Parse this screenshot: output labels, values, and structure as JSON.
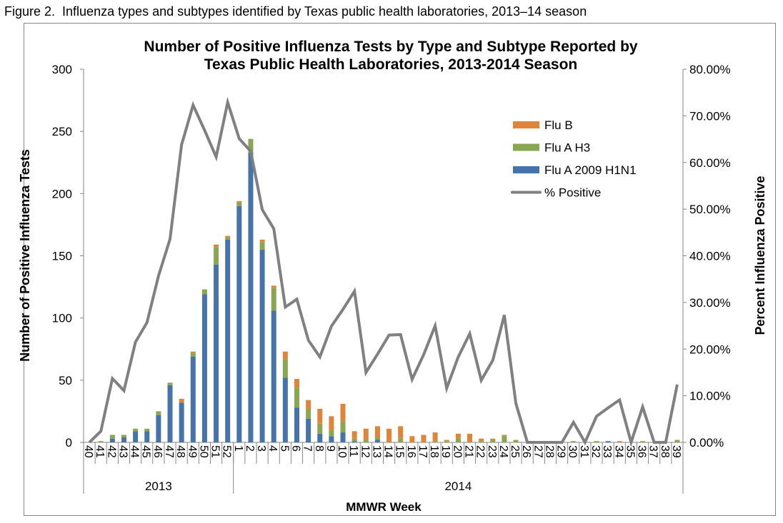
{
  "figure_caption": "Figure 2.  Influenza types and subtypes identified by Texas public health laboratories, 2013–14 season",
  "chart_data": {
    "type": "bar",
    "stacked": true,
    "title": [
      "Number of Positive Influenza Tests by Type and Subtype Reported by",
      "Texas Public Health Laboratories, 2013-2014 Season"
    ],
    "xlabel": "MMWR Week",
    "ylabel": "Number of Positive Influenza Tests",
    "y2label": "Percent Influenza Positive",
    "ylim": [
      0,
      300
    ],
    "yticks": [
      "0",
      "50",
      "100",
      "150",
      "200",
      "250",
      "300"
    ],
    "y2lim": [
      0,
      80
    ],
    "y2ticks": [
      "0.00%",
      "10.00%",
      "20.00%",
      "30.00%",
      "40.00%",
      "50.00%",
      "60.00%",
      "70.00%",
      "80.00%"
    ],
    "grid": false,
    "legend_placement": "top-right",
    "year_groups": [
      {
        "label": "2013",
        "count": 13
      },
      {
        "label": "2014",
        "count": 39
      }
    ],
    "categories": [
      "40",
      "41",
      "42",
      "43",
      "44",
      "45",
      "46",
      "47",
      "48",
      "49",
      "50",
      "51",
      "52",
      "1",
      "2",
      "3",
      "4",
      "5",
      "6",
      "7",
      "8",
      "9",
      "10",
      "11",
      "12",
      "13",
      "14",
      "15",
      "16",
      "17",
      "18",
      "19",
      "20",
      "21",
      "22",
      "23",
      "24",
      "25",
      "26",
      "27",
      "28",
      "29",
      "30",
      "31",
      "32",
      "33",
      "34",
      "35",
      "36",
      "37",
      "38",
      "39"
    ],
    "series": [
      {
        "name": "Flu A 2009 H1N1",
        "color": "#4674aa",
        "axis": "left",
        "values": [
          0,
          0,
          3,
          4,
          9,
          9,
          22,
          46,
          32,
          69,
          119,
          143,
          163,
          190,
          233,
          155,
          106,
          52,
          28,
          19,
          7,
          5,
          8,
          1,
          0,
          2,
          0,
          0,
          0,
          0,
          0,
          0,
          0,
          0,
          0,
          0,
          0,
          0,
          0,
          0,
          0,
          0,
          0,
          0,
          0,
          1,
          0,
          0,
          0,
          0,
          0,
          0
        ]
      },
      {
        "name": "Flu A H3",
        "color": "#8aa650",
        "axis": "left",
        "values": [
          0,
          1,
          3,
          2,
          2,
          2,
          3,
          2,
          0,
          3,
          4,
          14,
          2,
          3,
          11,
          6,
          18,
          15,
          16,
          8,
          8,
          5,
          9,
          2,
          2,
          2,
          0,
          3,
          0,
          0,
          1,
          1,
          3,
          0,
          1,
          2,
          5,
          2,
          0,
          0,
          0,
          0,
          1,
          0,
          1,
          0,
          0,
          0,
          1,
          0,
          0,
          2
        ]
      },
      {
        "name": "Flu B",
        "color": "#e0843a",
        "axis": "left",
        "values": [
          0,
          0,
          0,
          0,
          0,
          0,
          0,
          0,
          3,
          1,
          0,
          2,
          1,
          1,
          0,
          2,
          2,
          6,
          7,
          7,
          12,
          11,
          14,
          6,
          9,
          9,
          11,
          10,
          5,
          6,
          7,
          1,
          4,
          7,
          2,
          1,
          1,
          0,
          0,
          0,
          0,
          0,
          0,
          0,
          0,
          0,
          1,
          0,
          0,
          0,
          0,
          0
        ]
      },
      {
        "name": "% Positive",
        "color": "#808080",
        "axis": "right",
        "type": "line",
        "values": [
          0,
          2.4,
          13.7,
          11.1,
          21.5,
          25.7,
          35.7,
          43.6,
          63.8,
          72.3,
          66.9,
          61.2,
          72.9,
          65.1,
          62.4,
          49.9,
          45.8,
          29.0,
          30.7,
          21.9,
          18.3,
          24.9,
          28.5,
          32.4,
          15.0,
          18.9,
          23.0,
          23.1,
          13.5,
          18.8,
          25.0,
          11.6,
          18.3,
          23.3,
          13.3,
          17.6,
          27.3,
          8.4,
          0,
          0,
          0,
          0,
          4.3,
          0,
          5.6,
          7.4,
          9.1,
          0,
          7.6,
          0,
          0,
          12.4
        ]
      }
    ]
  }
}
